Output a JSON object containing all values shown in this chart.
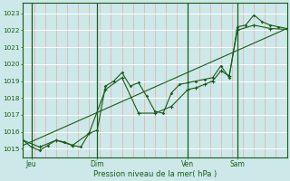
{
  "bg_color": "#cce8e8",
  "grid_color_v": "#e8aaaa",
  "grid_color_h": "#ffffff",
  "line_color": "#1a5c1a",
  "xlabel": "Pression niveau de la mer( hPa )",
  "yticks": [
    1015,
    1016,
    1017,
    1018,
    1019,
    1020,
    1021,
    1022,
    1023
  ],
  "ylim": [
    1014.5,
    1023.6
  ],
  "xlim": [
    0,
    96
  ],
  "xtick_positions": [
    3,
    27,
    60,
    78
  ],
  "xtick_labels": [
    "Jeu",
    "Dim",
    "Ven",
    "Sam"
  ],
  "vlines": [
    3,
    27,
    60,
    78
  ],
  "num_vgrid": 24,
  "series1_x": [
    0,
    3,
    6,
    9,
    12,
    15,
    18,
    21,
    24,
    27,
    30,
    33,
    36,
    39,
    42,
    45,
    48,
    51,
    54,
    57,
    60,
    63,
    66,
    69,
    72,
    75,
    78,
    81,
    84,
    87,
    90,
    93,
    96
  ],
  "series1_y": [
    1015.5,
    1015.1,
    1014.9,
    1015.2,
    1015.5,
    1015.4,
    1015.2,
    1015.1,
    1015.9,
    1016.1,
    1018.7,
    1019.0,
    1019.5,
    1018.7,
    1018.9,
    1018.1,
    1017.2,
    1017.1,
    1018.3,
    1018.8,
    1018.9,
    1019.0,
    1019.1,
    1019.2,
    1019.9,
    1019.2,
    1022.2,
    1022.3,
    1022.9,
    1022.5,
    1022.3,
    1022.2,
    1022.1
  ],
  "series2_x": [
    0,
    6,
    12,
    18,
    24,
    30,
    36,
    42,
    48,
    54,
    60,
    63,
    66,
    69,
    72,
    75,
    78,
    84,
    90,
    96
  ],
  "series2_y": [
    1015.5,
    1015.1,
    1015.5,
    1015.2,
    1015.9,
    1018.5,
    1019.2,
    1017.1,
    1017.1,
    1017.5,
    1018.5,
    1018.6,
    1018.8,
    1019.0,
    1019.6,
    1019.3,
    1022.0,
    1022.3,
    1022.1,
    1022.05
  ],
  "trend_x": [
    0,
    96
  ],
  "trend_y": [
    1015.2,
    1022.1
  ]
}
